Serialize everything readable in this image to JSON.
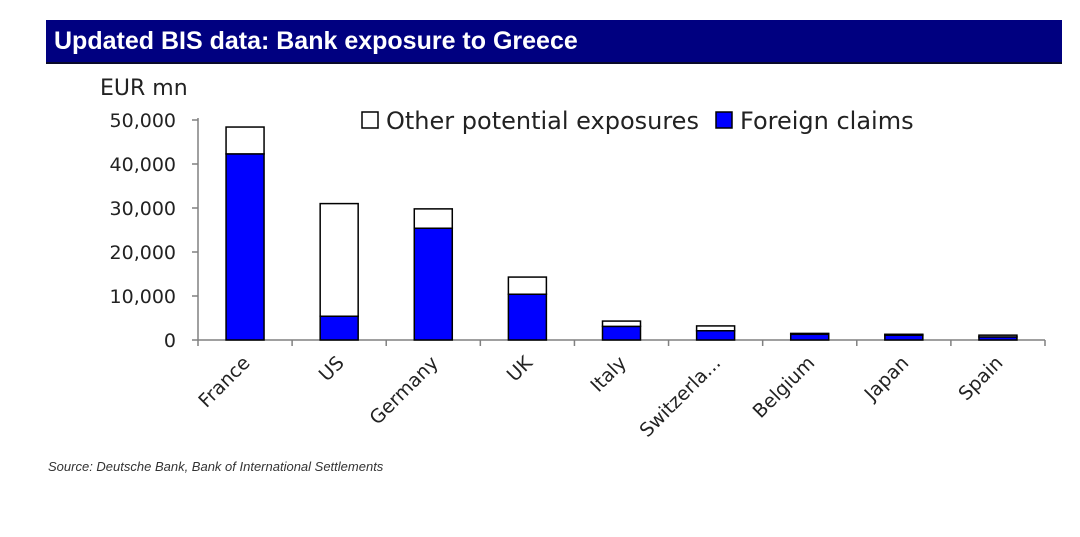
{
  "header": {
    "title": "Updated BIS data: Bank exposure to Greece"
  },
  "footer": {
    "source": "Source: Deutsche Bank, Bank of International Settlements"
  },
  "colors": {
    "title_bar": "#000080",
    "foreign_claims": "#0000FF",
    "other_exposures": "#FFFFFF",
    "outline": "#000000"
  },
  "chart_data": {
    "type": "bar",
    "stacked": true,
    "ylabel": "EUR mn",
    "ylim": [
      0,
      50000
    ],
    "yticks": [
      0,
      10000,
      20000,
      30000,
      40000,
      50000
    ],
    "ytick_labels": [
      "0",
      "10,000",
      "20,000",
      "30,000",
      "40,000",
      "50,000"
    ],
    "categories": [
      "France",
      "US",
      "Germany",
      "UK",
      "Italy",
      "Switzerla...",
      "Belgium",
      "Japan",
      "Spain"
    ],
    "series": [
      {
        "name": "Foreign claims",
        "values": [
          42300,
          5400,
          25400,
          10400,
          3100,
          2100,
          1300,
          1100,
          700
        ]
      },
      {
        "name": "Other potential exposures",
        "values": [
          6100,
          25600,
          4400,
          3900,
          1200,
          1100,
          200,
          200,
          400
        ]
      }
    ],
    "legend": [
      "Other potential exposures",
      "Foreign claims"
    ],
    "legend_position": "top",
    "grid": false
  }
}
